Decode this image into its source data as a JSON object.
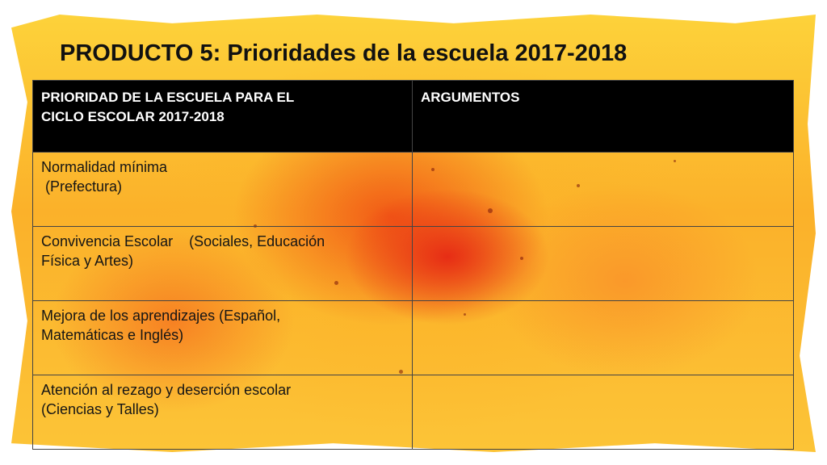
{
  "slide": {
    "title": "PRODUCTO 5: Prioridades de la escuela 2017-2018"
  },
  "table": {
    "headers": {
      "col1_line1": "PRIORIDAD DE LA ESCUELA PARA EL",
      "col1_line2": "CICLO ESCOLAR 2017-2018",
      "col2": "ARGUMENTOS"
    },
    "rows": [
      {
        "line1": "Normalidad mínima",
        "line2": " (Prefectura)",
        "argument": ""
      },
      {
        "line1": "Convivencia Escolar    (Sociales, Educación",
        "line2": "Física y Artes)",
        "argument": ""
      },
      {
        "line1": "Mejora de los aprendizajes (Español,",
        "line2": "Matemáticas e Inglés)",
        "argument": ""
      },
      {
        "line1": "Atención al rezago y deserción escolar",
        "line2": "(Ciencias y Talles)",
        "argument": ""
      }
    ]
  },
  "colors": {
    "header_bg": "#000000",
    "header_text": "#ffffff",
    "paint_orange": "#f05014",
    "paint_yellow": "#fdd23a"
  }
}
